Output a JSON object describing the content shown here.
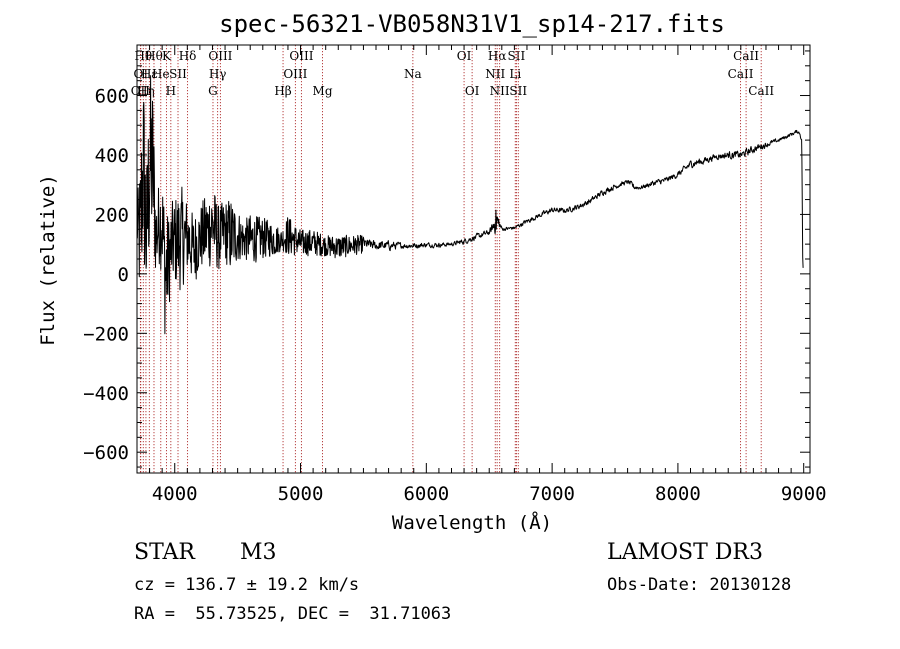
{
  "chart_data": {
    "type": "line",
    "title": "spec-56321-VB058N31V1_sp14-217.fits",
    "xlabel": "Wavelength (Å)",
    "ylabel": "Flux (relative)",
    "xlim": [
      3700,
      9050
    ],
    "ylim": [
      -670,
      770
    ],
    "x_ticks": [
      4000,
      5000,
      6000,
      7000,
      8000,
      9000
    ],
    "y_ticks": [
      -600,
      -400,
      -200,
      0,
      200,
      400,
      600
    ],
    "series": [
      {
        "name": "flux",
        "color": "#000000",
        "envelope": [
          [
            3700,
            90,
            240
          ],
          [
            3725,
            -150,
            380
          ],
          [
            3750,
            40,
            720
          ],
          [
            3775,
            -150,
            350
          ],
          [
            3800,
            40,
            700
          ],
          [
            3825,
            80,
            650
          ],
          [
            3850,
            -20,
            270
          ],
          [
            3875,
            30,
            310
          ],
          [
            3900,
            0,
            350
          ],
          [
            3925,
            -240,
            230
          ],
          [
            3950,
            -120,
            200
          ],
          [
            3975,
            -50,
            240
          ],
          [
            4000,
            -40,
            260
          ],
          [
            4050,
            -60,
            300
          ],
          [
            4100,
            0,
            250
          ],
          [
            4150,
            -40,
            200
          ],
          [
            4200,
            10,
            230
          ],
          [
            4300,
            20,
            310
          ],
          [
            4350,
            10,
            230
          ],
          [
            4400,
            40,
            250
          ],
          [
            4450,
            -10,
            260
          ],
          [
            4500,
            40,
            220
          ],
          [
            4550,
            50,
            180
          ],
          [
            4600,
            30,
            200
          ],
          [
            4700,
            50,
            190
          ],
          [
            4800,
            60,
            170
          ],
          [
            4850,
            80,
            150
          ],
          [
            4900,
            60,
            200
          ],
          [
            4950,
            60,
            170
          ],
          [
            5000,
            60,
            150
          ],
          [
            5100,
            60,
            150
          ],
          [
            5200,
            60,
            130
          ],
          [
            5300,
            50,
            130
          ],
          [
            5400,
            60,
            130
          ],
          [
            5500,
            70,
            130
          ],
          [
            5600,
            70,
            120
          ],
          [
            5700,
            70,
            120
          ],
          [
            5800,
            80,
            110
          ],
          [
            5900,
            80,
            110
          ],
          [
            6000,
            85,
            110
          ],
          [
            6100,
            85,
            110
          ],
          [
            6200,
            90,
            110
          ],
          [
            6300,
            95,
            125
          ],
          [
            6400,
            110,
            140
          ],
          [
            6500,
            125,
            155
          ],
          [
            6560,
            135,
            225
          ],
          [
            6600,
            140,
            160
          ],
          [
            6700,
            145,
            165
          ],
          [
            6800,
            165,
            190
          ],
          [
            6900,
            185,
            210
          ],
          [
            7000,
            200,
            230
          ],
          [
            7100,
            200,
            225
          ],
          [
            7200,
            210,
            240
          ],
          [
            7300,
            230,
            260
          ],
          [
            7400,
            260,
            290
          ],
          [
            7500,
            280,
            310
          ],
          [
            7600,
            300,
            320
          ],
          [
            7650,
            275,
            310
          ],
          [
            7700,
            280,
            300
          ],
          [
            7800,
            290,
            320
          ],
          [
            7900,
            300,
            330
          ],
          [
            8000,
            320,
            350
          ],
          [
            8100,
            350,
            390
          ],
          [
            8200,
            360,
            400
          ],
          [
            8300,
            380,
            410
          ],
          [
            8400,
            380,
            420
          ],
          [
            8500,
            380,
            420
          ],
          [
            8600,
            400,
            440
          ],
          [
            8700,
            420,
            450
          ],
          [
            8800,
            440,
            460
          ],
          [
            8900,
            460,
            480
          ],
          [
            8950,
            470,
            490
          ],
          [
            8970,
            460,
            480
          ],
          [
            8985,
            430,
            450
          ],
          [
            8992,
            30,
            70
          ]
        ]
      }
    ],
    "line_markers": [
      {
        "wavelength": 3727,
        "label": "OII",
        "row": 2
      },
      {
        "wavelength": 3730,
        "label": "OI",
        "row": 1
      },
      {
        "wavelength": 3750,
        "label": "Hθ",
        "row": 0
      },
      {
        "wavelength": 3771,
        "label": "Hη",
        "row": 2
      },
      {
        "wavelength": 3798,
        "label": "Hε",
        "row": 1
      },
      {
        "wavelength": 3835,
        "label": "Hθ",
        "row": 0
      },
      {
        "wavelength": 3889,
        "label": "He",
        "row": 1
      },
      {
        "wavelength": 3934,
        "label": "K",
        "row": 0
      },
      {
        "wavelength": 3969,
        "label": "H",
        "row": 2
      },
      {
        "wavelength": 4026,
        "label": "SII",
        "row": 1
      },
      {
        "wavelength": 4102,
        "label": "Hδ",
        "row": 0
      },
      {
        "wavelength": 4304,
        "label": "G",
        "row": 2
      },
      {
        "wavelength": 4341,
        "label": "Hγ",
        "row": 1
      },
      {
        "wavelength": 4363,
        "label": "OIII",
        "row": 0
      },
      {
        "wavelength": 4861,
        "label": "Hβ",
        "row": 2
      },
      {
        "wavelength": 4959,
        "label": "OIII",
        "row": 1
      },
      {
        "wavelength": 5007,
        "label": "OIII",
        "row": 0
      },
      {
        "wavelength": 5175,
        "label": "Mg",
        "row": 2
      },
      {
        "wavelength": 5893,
        "label": "Na",
        "row": 1
      },
      {
        "wavelength": 6300,
        "label": "OI",
        "row": 0
      },
      {
        "wavelength": 6364,
        "label": "OI",
        "row": 2
      },
      {
        "wavelength": 6548,
        "label": "NII",
        "row": 1
      },
      {
        "wavelength": 6563,
        "label": "Hα",
        "row": 0
      },
      {
        "wavelength": 6583,
        "label": "NII",
        "row": 2
      },
      {
        "wavelength": 6707,
        "label": "Li",
        "row": 1
      },
      {
        "wavelength": 6716,
        "label": "SII",
        "row": 0
      },
      {
        "wavelength": 6731,
        "label": "SII",
        "row": 2
      },
      {
        "wavelength": 8498,
        "label": "CaII",
        "row": 1
      },
      {
        "wavelength": 8542,
        "label": "CaII",
        "row": 0
      },
      {
        "wavelength": 8662,
        "label": "CaII",
        "row": 2
      }
    ]
  },
  "info": {
    "object_class": "STAR",
    "subclass": "M3",
    "survey": "LAMOST DR3",
    "redshift_line": "cz = 136.7 ± 19.2 km/s",
    "obs_date_line": "Obs-Date: 20130128",
    "coords_line": "RA =  55.73525, DEC =  31.71063"
  }
}
